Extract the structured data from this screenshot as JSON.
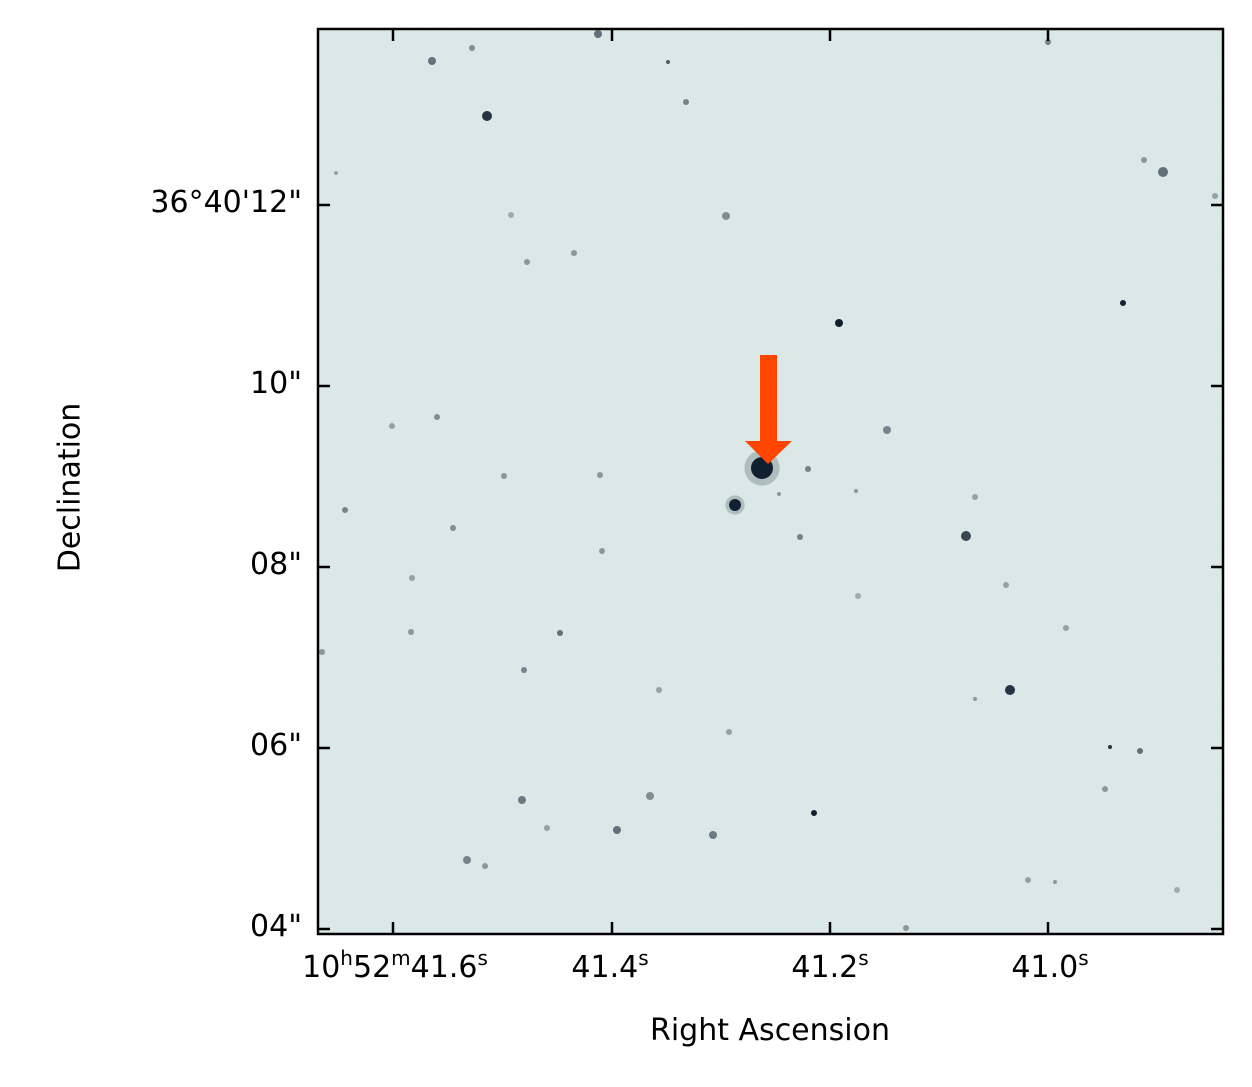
{
  "axes": {
    "xlabel": "Right Ascension",
    "ylabel": "Declination",
    "yticks": [
      "36°40'12\"",
      "10\"",
      "08\"",
      "06\"",
      "04\""
    ],
    "xticks": [
      {
        "h": "10",
        "h_unit": "h",
        "m": "52",
        "m_unit": "m",
        "s": "41.6",
        "s_unit": "s"
      },
      {
        "s": "41.4",
        "s_unit": "s"
      },
      {
        "s": "41.2",
        "s_unit": "s"
      },
      {
        "s": "41.0",
        "s_unit": "s"
      }
    ]
  },
  "image": {
    "background_color": "#d9e7e6",
    "star_color": "#102030",
    "marker_color": "#ff4500"
  }
}
